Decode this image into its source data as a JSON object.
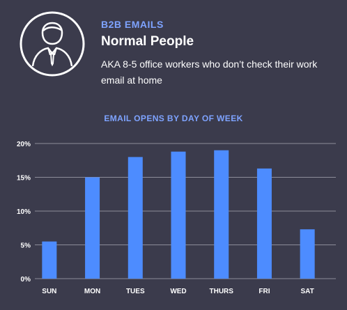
{
  "header": {
    "subtitle": "B2B EMAILS",
    "title": "Normal People",
    "description": "AKA 8-5 office workers who don’t check their work email at home"
  },
  "colors": {
    "background": "#3b3b4c",
    "accent": "#7ea3ff",
    "bar": "#4d8cff",
    "grid": "#8d8d9a"
  },
  "icons": {
    "avatar": "businessman-icon"
  },
  "chart_data": {
    "type": "bar",
    "title": "EMAIL OPENS BY DAY OF WEEK",
    "categories": [
      "SUN",
      "MON",
      "TUES",
      "WED",
      "THURS",
      "FRI",
      "SAT"
    ],
    "values": [
      5.5,
      15,
      18,
      18.8,
      19,
      16.3,
      7.3
    ],
    "ylim": [
      0,
      20
    ],
    "yticks": [
      0,
      5,
      10,
      15,
      20
    ],
    "ytick_labels": [
      "0%",
      "5%",
      "10%",
      "15%",
      "20%"
    ],
    "grid": true,
    "xlabel": "",
    "ylabel": ""
  }
}
